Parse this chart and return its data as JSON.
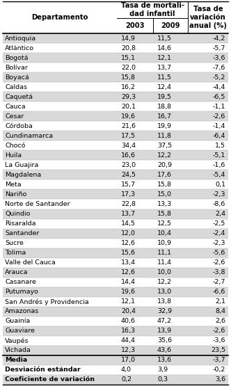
{
  "col_group_header": "Tasa de mortali-\ndad infantil",
  "col_sub_headers": [
    "2003",
    "2009"
  ],
  "col_last_header": "Tasa de\nvariación\nanual (%)",
  "col_first_header": "Departamento",
  "rows": [
    [
      "Antioquia",
      "14,9",
      "11,5",
      "-4,2"
    ],
    [
      "Atlántico",
      "20,8",
      "14,6",
      "-5,7"
    ],
    [
      "Bogotá",
      "15,1",
      "12,1",
      "-3,6"
    ],
    [
      "Bolívar",
      "22,0",
      "13,7",
      "-7,6"
    ],
    [
      "Boyacá",
      "15,8",
      "11,5",
      "-5,2"
    ],
    [
      "Caldas",
      "16,2",
      "12,4",
      "-4,4"
    ],
    [
      "Caquetá",
      "29,3",
      "19,5",
      "-6,5"
    ],
    [
      "Cauca",
      "20,1",
      "18,8",
      "-1,1"
    ],
    [
      "Cesar",
      "19,6",
      "16,7",
      "-2,6"
    ],
    [
      "Córdoba",
      "21,6",
      "19,9",
      "-1,4"
    ],
    [
      "Cundinamarca",
      "17,5",
      "11,8",
      "-6,4"
    ],
    [
      "Chocó",
      "34,4",
      "37,5",
      "1,5"
    ],
    [
      "Huila",
      "16,6",
      "12,2",
      "-5,1"
    ],
    [
      "La Guajira",
      "23,0",
      "20,9",
      "-1,6"
    ],
    [
      "Magdalena",
      "24,5",
      "17,6",
      "-5,4"
    ],
    [
      "Meta",
      "15,7",
      "15,8",
      "0,1"
    ],
    [
      "Nariño",
      "17,3",
      "15,0",
      "-2,3"
    ],
    [
      "Norte de Santander",
      "22,8",
      "13,3",
      "-8,6"
    ],
    [
      "Quindio",
      "13,7",
      "15,8",
      "2,4"
    ],
    [
      "Risaralda",
      "14,5",
      "12,5",
      "-2,5"
    ],
    [
      "Santander",
      "12,0",
      "10,4",
      "-2,4"
    ],
    [
      "Sucre",
      "12,6",
      "10,9",
      "-2,3"
    ],
    [
      "Tolima",
      "15,6",
      "11,1",
      "-5,6"
    ],
    [
      "Valle del Cauca",
      "13,4",
      "11,4",
      "-2,6"
    ],
    [
      "Arauca",
      "12,6",
      "10,0",
      "-3,8"
    ],
    [
      "Casanare",
      "14,4",
      "12,2",
      "-2,7"
    ],
    [
      "Putumayo",
      "19,6",
      "13,0",
      "-6,6"
    ],
    [
      "San Andrés y Providencia",
      "12,1",
      "13,8",
      "2,1"
    ],
    [
      "Amazonas",
      "20,4",
      "32,9",
      "8,4"
    ],
    [
      "Guainía",
      "40,6",
      "47,2",
      "2,6"
    ],
    [
      "Guaviare",
      "16,3",
      "13,9",
      "-2,6"
    ],
    [
      "Vaupés",
      "44,4",
      "35,6",
      "-3,6"
    ],
    [
      "Vichada",
      "12,3",
      "43,6",
      "23,5"
    ]
  ],
  "footer_rows": [
    [
      "Media",
      "17,0",
      "13,6",
      "-3,7"
    ],
    [
      "Desviación estándar",
      "4,0",
      "3,9",
      "-0,2"
    ],
    [
      "Coeficiente de variación",
      "0,2",
      "0,3",
      "3,6"
    ]
  ],
  "bg_color_even": "#d9d9d9",
  "bg_color_odd": "#ffffff",
  "font_size": 6.8,
  "header_font_size": 7.2
}
